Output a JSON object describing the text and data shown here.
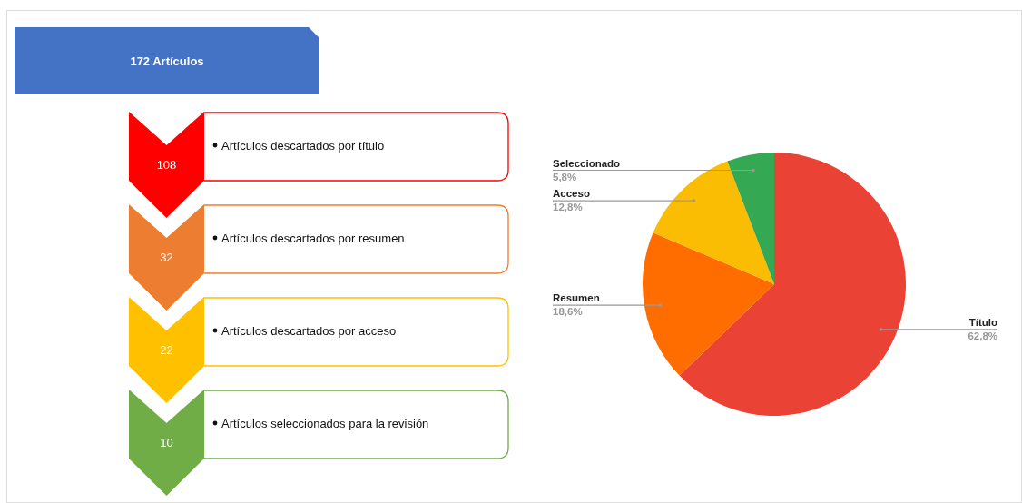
{
  "chart_data": [
    {
      "type": "other",
      "title": "172 Artículos",
      "categories": [
        "Artículos descartados por título",
        "Artículos descartados por resumen",
        "Artículos descartados por acceso",
        "Artículos seleccionados para la revisión"
      ],
      "values": [
        108,
        32,
        22,
        10
      ],
      "colors": [
        "#ff0000",
        "#ed7d31",
        "#ffc000",
        "#70ad47"
      ],
      "data_labels": true
    },
    {
      "type": "pie",
      "categories": [
        "Título",
        "Resumen",
        "Acceso",
        "Seleccionado"
      ],
      "values": [
        62.8,
        18.6,
        12.8,
        5.8
      ],
      "colors": [
        "#ea4335",
        "#ff6d01",
        "#fbbc04",
        "#34a853"
      ],
      "value_labels": [
        "62,8%",
        "18,6%",
        "12,8%",
        "5,8%"
      ]
    }
  ]
}
